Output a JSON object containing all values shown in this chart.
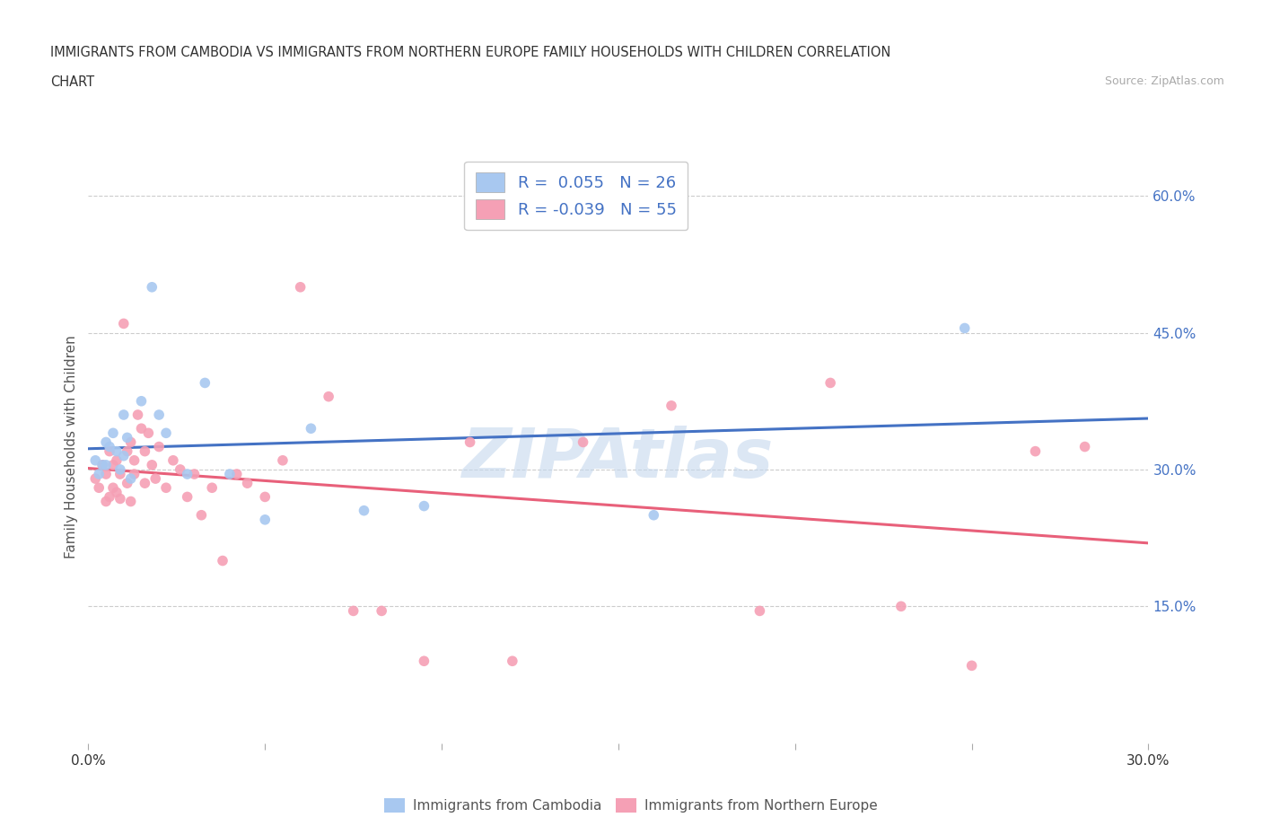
{
  "title_line1": "IMMIGRANTS FROM CAMBODIA VS IMMIGRANTS FROM NORTHERN EUROPE FAMILY HOUSEHOLDS WITH CHILDREN CORRELATION",
  "title_line2": "CHART",
  "source": "Source: ZipAtlas.com",
  "ylabel": "Family Households with Children",
  "xlim": [
    0.0,
    0.3
  ],
  "ylim": [
    0.0,
    0.65
  ],
  "xticks": [
    0.0,
    0.05,
    0.1,
    0.15,
    0.2,
    0.25,
    0.3
  ],
  "ytick_right": [
    0.15,
    0.3,
    0.45,
    0.6
  ],
  "ytick_right_labels": [
    "15.0%",
    "30.0%",
    "45.0%",
    "60.0%"
  ],
  "r_cambodia": 0.055,
  "n_cambodia": 26,
  "r_northern": -0.039,
  "n_northern": 55,
  "color_cambodia": "#a8c8f0",
  "color_northern": "#f5a0b5",
  "line_color_cambodia": "#4472c4",
  "line_color_northern": "#e8607a",
  "watermark_text": "ZIPAtlas",
  "scatter_cambodia_x": [
    0.002,
    0.003,
    0.004,
    0.005,
    0.005,
    0.006,
    0.007,
    0.008,
    0.009,
    0.01,
    0.01,
    0.011,
    0.012,
    0.015,
    0.018,
    0.02,
    0.022,
    0.028,
    0.033,
    0.04,
    0.05,
    0.063,
    0.078,
    0.095,
    0.16,
    0.248
  ],
  "scatter_cambodia_y": [
    0.31,
    0.295,
    0.305,
    0.33,
    0.305,
    0.325,
    0.34,
    0.32,
    0.3,
    0.36,
    0.315,
    0.335,
    0.29,
    0.375,
    0.5,
    0.36,
    0.34,
    0.295,
    0.395,
    0.295,
    0.245,
    0.345,
    0.255,
    0.26,
    0.25,
    0.455
  ],
  "scatter_northern_x": [
    0.002,
    0.003,
    0.004,
    0.005,
    0.005,
    0.006,
    0.006,
    0.007,
    0.007,
    0.008,
    0.008,
    0.009,
    0.009,
    0.01,
    0.011,
    0.011,
    0.012,
    0.012,
    0.013,
    0.013,
    0.014,
    0.015,
    0.016,
    0.016,
    0.017,
    0.018,
    0.019,
    0.02,
    0.022,
    0.024,
    0.026,
    0.028,
    0.03,
    0.032,
    0.035,
    0.038,
    0.042,
    0.045,
    0.05,
    0.055,
    0.06,
    0.068,
    0.075,
    0.083,
    0.095,
    0.108,
    0.12,
    0.14,
    0.165,
    0.19,
    0.21,
    0.23,
    0.25,
    0.268,
    0.282
  ],
  "scatter_northern_y": [
    0.29,
    0.28,
    0.305,
    0.295,
    0.265,
    0.32,
    0.27,
    0.305,
    0.28,
    0.31,
    0.275,
    0.295,
    0.268,
    0.46,
    0.32,
    0.285,
    0.33,
    0.265,
    0.31,
    0.295,
    0.36,
    0.345,
    0.32,
    0.285,
    0.34,
    0.305,
    0.29,
    0.325,
    0.28,
    0.31,
    0.3,
    0.27,
    0.295,
    0.25,
    0.28,
    0.2,
    0.295,
    0.285,
    0.27,
    0.31,
    0.5,
    0.38,
    0.145,
    0.145,
    0.09,
    0.33,
    0.09,
    0.33,
    0.37,
    0.145,
    0.395,
    0.15,
    0.085,
    0.32,
    0.325
  ],
  "background_color": "#ffffff",
  "grid_color": "#cccccc",
  "legend_text_color": "#4472c4",
  "title_color": "#333333",
  "source_color": "#aaaaaa",
  "ylabel_color": "#555555"
}
